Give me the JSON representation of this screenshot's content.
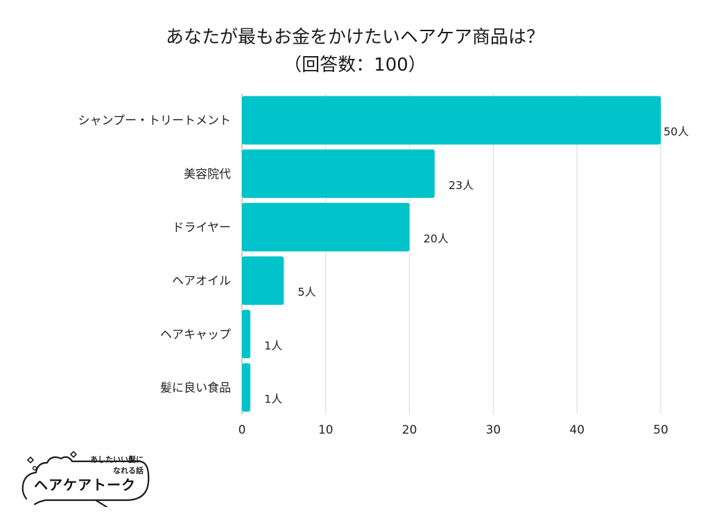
{
  "title": {
    "line1": "あなたが最もお金をかけたいヘアケア商品は？",
    "line2": "（回答数：100）"
  },
  "chart_data": {
    "type": "bar",
    "orientation": "horizontal",
    "categories": [
      "シャンプー・トリートメント",
      "美容院代",
      "ドライヤー",
      "ヘアオイル",
      "ヘアキャップ",
      "髪に良い食品"
    ],
    "values": [
      50,
      23,
      20,
      5,
      1,
      1
    ],
    "data_labels": [
      "50人",
      "23人",
      "20人",
      "5人",
      "1人",
      "1人"
    ],
    "xlim": [
      0,
      50
    ],
    "xticks": [
      0,
      10,
      20,
      30,
      40,
      50
    ],
    "grid": true,
    "bar_color": "#00c4c9",
    "grid_color": "#d6d6d6"
  },
  "logo": {
    "tagline_line1": "あしたいい髪に",
    "tagline_line2": "なれる話",
    "name": "ヘアケアトーク"
  }
}
